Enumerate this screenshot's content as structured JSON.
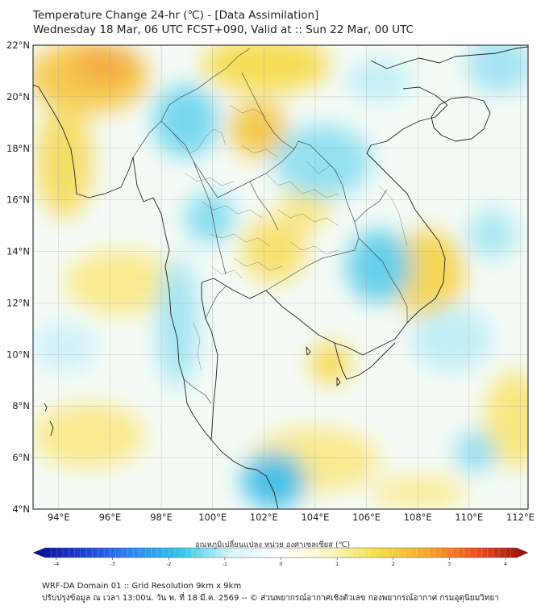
{
  "title": {
    "line1": "Temperature Change 24-hr (℃) - [Data Assimilation]",
    "line2": "Wednesday 18 Mar, 06 UTC FCST+090, Valid at :: Sun 22 Mar, 00 UTC"
  },
  "map": {
    "lat_labels": [
      "4°N",
      "6°N",
      "8°N",
      "10°N",
      "12°N",
      "14°N",
      "16°N",
      "18°N",
      "20°N",
      "22°N"
    ],
    "lon_labels": [
      "94°E",
      "96°E",
      "98°E",
      "100°E",
      "102°E",
      "104°E",
      "106°E",
      "108°E",
      "110°E",
      "112°E"
    ],
    "lat_range": [
      4,
      22
    ],
    "lon_range": [
      93,
      112.3
    ],
    "field_extremes": {
      "min": -1.5,
      "max": 2.2
    }
  },
  "colorbar": {
    "title": "อุณหภูมิเปลี่ยนแปลง หน่วย องศาเซลเซียส (℃)",
    "ticks": [
      "-4",
      "-3",
      "-2",
      "-1",
      "0",
      "1",
      "2",
      "3",
      "4"
    ],
    "range": [
      -4,
      4
    ],
    "colors": [
      "#08088f",
      "#1f3fd6",
      "#2f86ee",
      "#34c6ea",
      "#d6f6fb",
      "#ffffff",
      "#fbf6c0",
      "#f6dc46",
      "#f7a428",
      "#ea4c1f",
      "#8e0c0c"
    ]
  },
  "footer": {
    "line1": "WRF-DA Domain 01 :: Grid Resolution 9km x 9km",
    "line2": "ปรับปรุงข้อมูล ณ เวลา 13:00น. วัน พ. ที่ 18 มี.ค. 2569 -- © ส่วนพยากรณ์อากาศเชิงตัวเลข กองพยากรณ์อากาศ กรมอุตุนิยมวิทยา"
  }
}
